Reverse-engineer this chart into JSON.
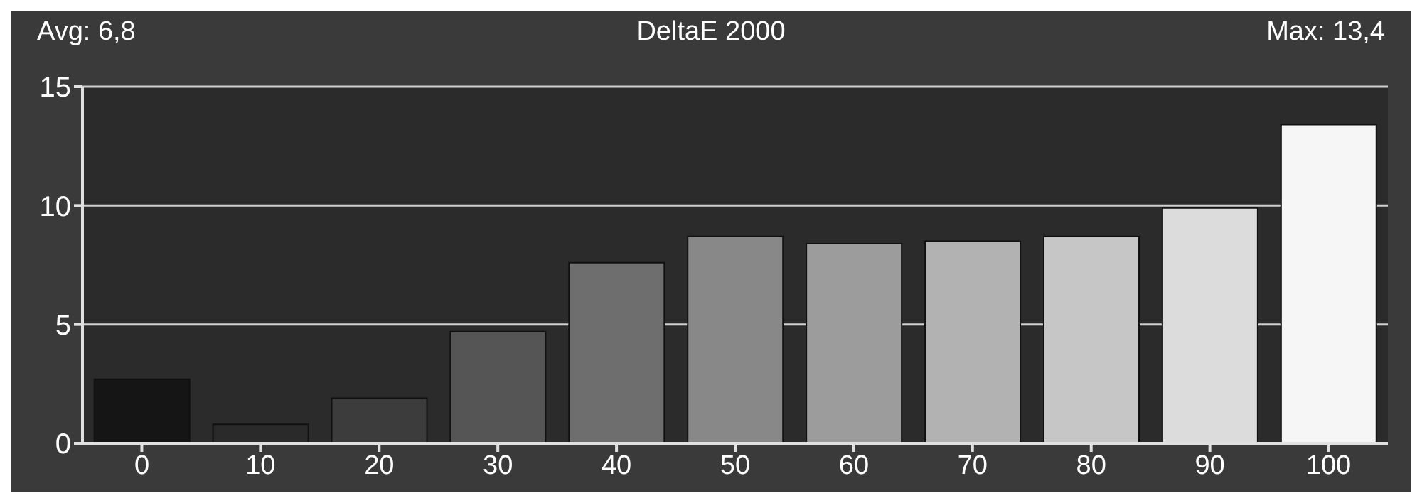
{
  "chart_data": {
    "type": "bar",
    "title": "DeltaE 2000",
    "annotations": [
      "Avg: 6,8",
      "Max: 13,4"
    ],
    "categories": [
      "0",
      "10",
      "20",
      "30",
      "40",
      "50",
      "60",
      "70",
      "80",
      "90",
      "100"
    ],
    "values": [
      2.7,
      0.8,
      1.9,
      4.7,
      7.6,
      8.7,
      8.4,
      8.5,
      8.7,
      9.9,
      13.4
    ],
    "colors": [
      "#151515",
      "#2a2a2a",
      "#3c3c3c",
      "#555555",
      "#6e6e6e",
      "#888888",
      "#9c9c9c",
      "#b2b2b2",
      "#c6c6c6",
      "#dcdcdc",
      "#f6f6f6"
    ],
    "ylim": [
      0,
      15
    ],
    "yticks": [
      0,
      5,
      10,
      15
    ],
    "grid": "y"
  }
}
